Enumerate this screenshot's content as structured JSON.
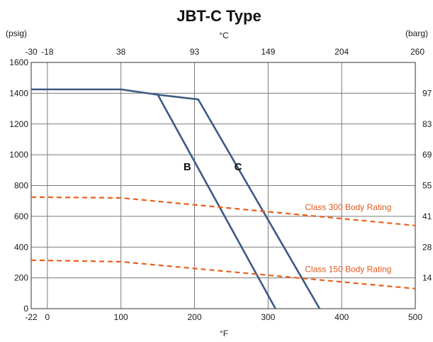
{
  "chart_data": {
    "type": "line",
    "title": "JBT-C Type",
    "left_unit": "(psig)",
    "right_unit": "(barg)",
    "top_unit": "°C",
    "xlabel": "°F",
    "xlim": [
      -22,
      500
    ],
    "ylim": [
      0,
      1600
    ],
    "x_ticks": [
      {
        "value": -22,
        "label": "-22"
      },
      {
        "value": 0,
        "label": "0"
      },
      {
        "value": 100,
        "label": "100"
      },
      {
        "value": 200,
        "label": "200"
      },
      {
        "value": 300,
        "label": "300"
      },
      {
        "value": 400,
        "label": "400"
      },
      {
        "value": 500,
        "label": "500"
      }
    ],
    "top_ticks": [
      {
        "value": -22,
        "label": "-30"
      },
      {
        "value": 0,
        "label": "-18"
      },
      {
        "value": 100,
        "label": "38"
      },
      {
        "value": 200,
        "label": "93"
      },
      {
        "value": 300,
        "label": "149"
      },
      {
        "value": 400,
        "label": "204"
      },
      {
        "value": 500,
        "label": "260"
      }
    ],
    "y_ticks": [
      0,
      200,
      400,
      600,
      800,
      1000,
      1200,
      1400,
      1600
    ],
    "right_ticks": [
      {
        "value": 200,
        "label": "14"
      },
      {
        "value": 400,
        "label": "28"
      },
      {
        "value": 600,
        "label": "41"
      },
      {
        "value": 800,
        "label": "55"
      },
      {
        "value": 1000,
        "label": "69"
      },
      {
        "value": 1200,
        "label": "83"
      },
      {
        "value": 1400,
        "label": "97"
      }
    ],
    "grid": true,
    "series": [
      {
        "name": "B",
        "style": "solid",
        "color": "#3d5a86",
        "x": [
          -22,
          100,
          150,
          310
        ],
        "y": [
          1425,
          1425,
          1390,
          0
        ]
      },
      {
        "name": "C",
        "style": "solid",
        "color": "#3d5a86",
        "x": [
          150,
          205,
          370
        ],
        "y": [
          1390,
          1360,
          0
        ]
      },
      {
        "name": "Class 300 Body Rating",
        "style": "dashed",
        "color": "#e8601c",
        "x": [
          -22,
          100,
          500
        ],
        "y": [
          725,
          720,
          540
        ]
      },
      {
        "name": "Class 150 Body Rating",
        "style": "dashed",
        "color": "#e8601c",
        "x": [
          -22,
          100,
          500
        ],
        "y": [
          315,
          305,
          130
        ]
      }
    ],
    "labels": [
      {
        "text": "B",
        "x": 185,
        "y": 900
      },
      {
        "text": "C",
        "x": 254,
        "y": 900
      },
      {
        "text": "Class 300 Body Rating",
        "x": 350,
        "y": 640
      },
      {
        "text": "Class 150 Body Rating",
        "x": 350,
        "y": 238
      }
    ]
  }
}
